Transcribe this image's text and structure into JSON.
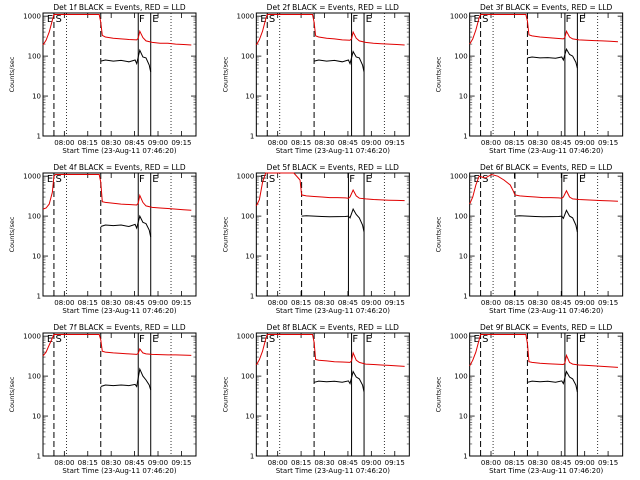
{
  "page": {
    "background": "#ffffff",
    "line_colors": {
      "events": "#000000",
      "lld": "#e00000",
      "markers": "#000000"
    }
  },
  "common": {
    "xlabel": "Start Time (23-Aug-11 07:46:20)",
    "ylabel": "Counts/sec",
    "x_tick_labels": [
      "08:00",
      "08:15",
      "08:30",
      "08:45",
      "09:00",
      "09:15"
    ],
    "y_tick_labels": [
      "1",
      "10",
      "100",
      "1000"
    ],
    "marker_letters": [
      "E",
      "S",
      "F",
      "E"
    ]
  },
  "chart_data": [
    {
      "type": "line",
      "title": "Det 1f BLACK = Events, RED = LLD",
      "xlabel": "Start Time (23-Aug-11 07:46:20)",
      "ylabel": "Counts/sec",
      "x_unit": "minutes after 07:46:20",
      "xlim": [
        0,
        98
      ],
      "ylim": [
        1,
        1200
      ],
      "yscale": "log",
      "markers": {
        "dashed": [
          7,
          37
        ],
        "dotted": [
          15,
          82
        ],
        "solid": [
          61,
          69
        ]
      },
      "series": [
        {
          "name": "Events",
          "color": "#000000",
          "x": [
            37,
            40,
            45,
            50,
            55,
            59,
            60,
            62,
            64,
            66,
            68,
            69
          ],
          "y": [
            75,
            80,
            75,
            78,
            72,
            80,
            65,
            140,
            95,
            90,
            60,
            40
          ]
        },
        {
          "name": "LLD",
          "color": "#e00000",
          "x": [
            0,
            2,
            4,
            6,
            7,
            8,
            36,
            37,
            38,
            40,
            45,
            50,
            55,
            60,
            61,
            62,
            64,
            66,
            70,
            75,
            80,
            85,
            90,
            95
          ],
          "y": [
            190,
            250,
            400,
            800,
            1100,
            1100,
            1100,
            700,
            330,
            300,
            280,
            270,
            260,
            255,
            280,
            420,
            290,
            240,
            220,
            210,
            210,
            200,
            195,
            190
          ]
        }
      ]
    },
    {
      "type": "line",
      "title": "Det 2f BLACK = Events, RED = LLD",
      "xlabel": "Start Time (23-Aug-11 07:46:20)",
      "ylabel": "Counts/sec",
      "x_unit": "minutes after 07:46:20",
      "xlim": [
        0,
        98
      ],
      "ylim": [
        1,
        1200
      ],
      "yscale": "log",
      "markers": {
        "dashed": [
          7,
          37
        ],
        "dotted": [
          15,
          82
        ],
        "solid": [
          61,
          69
        ]
      },
      "series": [
        {
          "name": "Events",
          "color": "#000000",
          "x": [
            37,
            40,
            45,
            50,
            55,
            59,
            60,
            62,
            64,
            66,
            68,
            69
          ],
          "y": [
            75,
            80,
            75,
            78,
            72,
            80,
            65,
            130,
            95,
            90,
            60,
            40
          ]
        },
        {
          "name": "LLD",
          "color": "#e00000",
          "x": [
            0,
            2,
            4,
            6,
            7,
            8,
            36,
            37,
            38,
            40,
            45,
            50,
            55,
            60,
            61,
            62,
            64,
            66,
            70,
            75,
            80,
            85,
            90,
            95
          ],
          "y": [
            190,
            260,
            420,
            850,
            1100,
            1100,
            1100,
            700,
            320,
            300,
            280,
            270,
            255,
            250,
            270,
            400,
            280,
            240,
            220,
            210,
            205,
            200,
            195,
            190
          ]
        }
      ]
    },
    {
      "type": "line",
      "title": "Det 3f BLACK = Events, RED = LLD",
      "xlabel": "Start Time (23-Aug-11 07:46:20)",
      "ylabel": "Counts/sec",
      "x_unit": "minutes after 07:46:20",
      "xlim": [
        0,
        98
      ],
      "ylim": [
        1,
        1200
      ],
      "yscale": "log",
      "markers": {
        "dashed": [
          7,
          37
        ],
        "dotted": [
          15,
          82
        ],
        "solid": [
          61,
          69
        ]
      },
      "series": [
        {
          "name": "Events",
          "color": "#000000",
          "x": [
            37,
            40,
            45,
            50,
            55,
            59,
            60,
            62,
            64,
            66,
            68,
            69
          ],
          "y": [
            90,
            95,
            90,
            92,
            88,
            95,
            80,
            150,
            110,
            100,
            70,
            50
          ]
        },
        {
          "name": "LLD",
          "color": "#e00000",
          "x": [
            0,
            2,
            4,
            6,
            7,
            8,
            36,
            37,
            38,
            40,
            45,
            50,
            55,
            60,
            61,
            62,
            64,
            66,
            70,
            75,
            80,
            85,
            90,
            95
          ],
          "y": [
            200,
            270,
            450,
            900,
            1100,
            1100,
            1100,
            750,
            340,
            320,
            300,
            290,
            280,
            270,
            290,
            420,
            300,
            270,
            255,
            250,
            245,
            240,
            235,
            230
          ]
        }
      ]
    },
    {
      "type": "line",
      "title": "Det 4f BLACK = Events, RED = LLD",
      "xlabel": "Start Time (23-Aug-11 07:46:20)",
      "ylabel": "Counts/sec",
      "x_unit": "minutes after 07:46:20",
      "xlim": [
        0,
        98
      ],
      "ylim": [
        1,
        1200
      ],
      "yscale": "log",
      "markers": {
        "dashed": [
          7,
          37
        ],
        "dotted": [
          15,
          82
        ],
        "solid": [
          61,
          69
        ]
      },
      "series": [
        {
          "name": "Events",
          "color": "#000000",
          "x": [
            37,
            40,
            45,
            50,
            55,
            59,
            60,
            62,
            64,
            66,
            68,
            69
          ],
          "y": [
            55,
            60,
            58,
            60,
            55,
            62,
            50,
            100,
            70,
            65,
            45,
            30
          ]
        },
        {
          "name": "LLD",
          "color": "#e00000",
          "x": [
            0,
            2,
            4,
            6,
            7,
            8,
            36,
            37,
            38,
            40,
            45,
            50,
            55,
            60,
            61,
            62,
            64,
            66,
            70,
            75,
            80,
            85,
            90,
            95
          ],
          "y": [
            150,
            160,
            200,
            400,
            1000,
            1100,
            1100,
            700,
            230,
            220,
            210,
            200,
            195,
            190,
            210,
            330,
            220,
            180,
            165,
            160,
            155,
            150,
            145,
            140
          ]
        }
      ]
    },
    {
      "type": "line",
      "title": "Det 5f BLACK = Events, RED = LLD",
      "xlabel": "Start Time (23-Aug-11 07:46:20)",
      "ylabel": "Counts/sec",
      "x_unit": "minutes after 07:46:20",
      "xlim": [
        0,
        98
      ],
      "ylim": [
        1,
        1200
      ],
      "yscale": "log",
      "markers": {
        "dashed": [
          7,
          29
        ],
        "dotted": [
          15,
          82
        ],
        "solid": [
          59,
          69
        ]
      },
      "series": [
        {
          "name": "Events",
          "color": "#000000",
          "x": [
            29,
            32,
            37,
            42,
            47,
            52,
            57,
            59,
            60,
            62,
            64,
            66,
            68,
            69
          ],
          "y": [
            100,
            102,
            100,
            98,
            96,
            97,
            98,
            100,
            90,
            150,
            110,
            90,
            60,
            40
          ]
        },
        {
          "name": "LLD",
          "color": "#e00000",
          "x": [
            0,
            2,
            4,
            6,
            8,
            12,
            20,
            24,
            28,
            29,
            32,
            37,
            42,
            47,
            52,
            57,
            59,
            60,
            62,
            64,
            66,
            70,
            75,
            80,
            85,
            90,
            95
          ],
          "y": [
            180,
            260,
            700,
            1200,
            1200,
            1200,
            1200,
            1200,
            800,
            340,
            320,
            310,
            300,
            290,
            290,
            285,
            280,
            300,
            450,
            320,
            280,
            270,
            260,
            255,
            250,
            248,
            245
          ]
        }
      ]
    },
    {
      "type": "line",
      "title": "Det 6f BLACK = Events, RED = LLD",
      "xlabel": "Start Time (23-Aug-11 07:46:20)",
      "ylabel": "Counts/sec",
      "x_unit": "minutes after 07:46:20",
      "xlim": [
        0,
        98
      ],
      "ylim": [
        1,
        1200
      ],
      "yscale": "log",
      "markers": {
        "dashed": [
          7,
          29
        ],
        "dotted": [
          15,
          82
        ],
        "solid": [
          59,
          69
        ]
      },
      "series": [
        {
          "name": "Events",
          "color": "#000000",
          "x": [
            29,
            32,
            37,
            42,
            47,
            52,
            57,
            59,
            60,
            62,
            64,
            66,
            68,
            69
          ],
          "y": [
            100,
            102,
            100,
            98,
            96,
            97,
            98,
            100,
            88,
            140,
            100,
            90,
            60,
            40
          ]
        },
        {
          "name": "LLD",
          "color": "#e00000",
          "x": [
            0,
            2,
            4,
            6,
            8,
            10,
            14,
            18,
            22,
            26,
            28,
            29,
            32,
            37,
            42,
            47,
            52,
            57,
            59,
            60,
            62,
            64,
            66,
            70,
            75,
            80,
            85,
            90,
            95
          ],
          "y": [
            200,
            300,
            600,
            1000,
            950,
            900,
            1100,
            1000,
            800,
            600,
            420,
            340,
            320,
            310,
            300,
            290,
            290,
            285,
            280,
            300,
            430,
            300,
            270,
            260,
            255,
            250,
            245,
            240,
            235
          ]
        }
      ]
    },
    {
      "type": "line",
      "title": "Det 7f BLACK = Events, RED = LLD",
      "xlabel": "Start Time (23-Aug-11 07:46:20)",
      "ylabel": "Counts/sec",
      "x_unit": "minutes after 07:46:20",
      "xlim": [
        0,
        98
      ],
      "ylim": [
        1,
        1200
      ],
      "yscale": "log",
      "markers": {
        "dashed": [
          7,
          37
        ],
        "dotted": [
          15,
          82
        ],
        "solid": [
          61,
          69
        ]
      },
      "series": [
        {
          "name": "Events",
          "color": "#000000",
          "x": [
            37,
            40,
            45,
            50,
            55,
            59,
            60,
            62,
            64,
            66,
            68,
            69
          ],
          "y": [
            55,
            60,
            58,
            60,
            58,
            62,
            55,
            150,
            100,
            80,
            60,
            45
          ]
        },
        {
          "name": "LLD",
          "color": "#e00000",
          "x": [
            0,
            2,
            4,
            6,
            7,
            8,
            36,
            37,
            38,
            40,
            45,
            50,
            55,
            60,
            61,
            62,
            64,
            66,
            70,
            75,
            80,
            85,
            90,
            95
          ],
          "y": [
            320,
            400,
            600,
            900,
            1100,
            1100,
            1100,
            800,
            420,
            400,
            380,
            370,
            360,
            350,
            370,
            480,
            380,
            360,
            350,
            345,
            340,
            340,
            335,
            330
          ]
        }
      ]
    },
    {
      "type": "line",
      "title": "Det 8f BLACK = Events, RED = LLD",
      "xlabel": "Start Time (23-Aug-11 07:46:20)",
      "ylabel": "Counts/sec",
      "x_unit": "minutes after 07:46:20",
      "xlim": [
        0,
        98
      ],
      "ylim": [
        1,
        1200
      ],
      "yscale": "log",
      "markers": {
        "dashed": [
          7,
          37
        ],
        "dotted": [
          15,
          82
        ],
        "solid": [
          61,
          69
        ]
      },
      "series": [
        {
          "name": "Events",
          "color": "#000000",
          "x": [
            37,
            40,
            45,
            50,
            55,
            59,
            60,
            62,
            64,
            66,
            68,
            69
          ],
          "y": [
            70,
            75,
            72,
            74,
            70,
            76,
            65,
            130,
            95,
            85,
            60,
            40
          ]
        },
        {
          "name": "LLD",
          "color": "#e00000",
          "x": [
            0,
            2,
            4,
            6,
            7,
            8,
            36,
            37,
            38,
            40,
            45,
            50,
            55,
            60,
            61,
            62,
            64,
            66,
            70,
            75,
            80,
            85,
            90,
            95
          ],
          "y": [
            190,
            260,
            420,
            850,
            1100,
            1100,
            1100,
            700,
            260,
            250,
            240,
            230,
            225,
            220,
            240,
            380,
            250,
            220,
            200,
            195,
            190,
            185,
            180,
            175
          ]
        }
      ]
    },
    {
      "type": "line",
      "title": "Det 9f BLACK = Events, RED = LLD",
      "xlabel": "Start Time (23-Aug-11 07:46:20)",
      "ylabel": "Counts/sec",
      "x_unit": "minutes after 07:46:20",
      "xlim": [
        0,
        98
      ],
      "ylim": [
        1,
        1200
      ],
      "yscale": "log",
      "markers": {
        "dashed": [
          7,
          37
        ],
        "dotted": [
          15,
          82
        ],
        "solid": [
          61,
          69
        ]
      },
      "series": [
        {
          "name": "Events",
          "color": "#000000",
          "x": [
            37,
            40,
            45,
            50,
            55,
            59,
            60,
            62,
            64,
            66,
            68,
            69
          ],
          "y": [
            70,
            75,
            72,
            74,
            70,
            76,
            65,
            130,
            95,
            85,
            60,
            40
          ]
        },
        {
          "name": "LLD",
          "color": "#e00000",
          "x": [
            0,
            2,
            4,
            6,
            7,
            8,
            36,
            37,
            38,
            40,
            45,
            50,
            55,
            60,
            61,
            62,
            64,
            66,
            70,
            75,
            80,
            85,
            90,
            95
          ],
          "y": [
            180,
            250,
            400,
            800,
            1100,
            1100,
            1100,
            650,
            230,
            220,
            210,
            205,
            200,
            195,
            210,
            330,
            220,
            200,
            190,
            185,
            180,
            175,
            170,
            165
          ]
        }
      ]
    }
  ]
}
